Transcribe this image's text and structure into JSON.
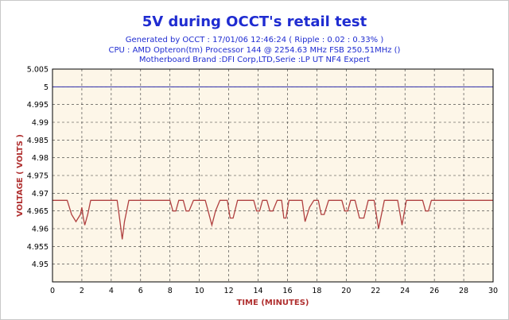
{
  "chart_data": {
    "type": "line",
    "title": "5V during OCCT's retail test",
    "subtitle_lines": [
      "Generated by OCCT : 17/01/06 12:46:24 ( Ripple : 0.02 : 0.33% )",
      "CPU : AMD Opteron(tm) Processor 144     @ 2254.63 MHz FSB 250.51MHz ()",
      "Motherboard Brand :DFI Corp,LTD,Serie :LP UT NF4 Expert"
    ],
    "xlabel": "TIME (MINUTES)",
    "ylabel": "VOLTAGE ( VOLTS )",
    "xlim": [
      0,
      30
    ],
    "ylim": [
      4.945,
      5.005
    ],
    "x_ticks": [
      0,
      2,
      4,
      6,
      8,
      10,
      12,
      14,
      16,
      18,
      20,
      22,
      24,
      26,
      28,
      30
    ],
    "y_ticks": [
      "4.95",
      "4.955",
      "4.96",
      "4.965",
      "4.97",
      "4.975",
      "4.98",
      "4.985",
      "4.99",
      "4.995",
      "5",
      "5.005"
    ],
    "grid": true,
    "colors": {
      "plot_bg": "#fdf6e8",
      "grid": "#333333",
      "ref_line": "#2a2aaa",
      "series": "#b04040",
      "title": "#1f2cd1",
      "axis_title": "#b03030"
    },
    "reference_line": {
      "y": 5.0
    },
    "series": [
      {
        "x": [
          0,
          1.0,
          1.3,
          1.6,
          1.9,
          2.0,
          2.1,
          2.2,
          2.4,
          2.6,
          2.9,
          4.4,
          4.6,
          4.75,
          4.9,
          5.2,
          8.0,
          8.2,
          8.4,
          8.6,
          8.9,
          9.1,
          9.3,
          9.6,
          10.4,
          10.6,
          10.85,
          11.1,
          11.4,
          11.9,
          12.1,
          12.3,
          12.6,
          13.7,
          13.9,
          14.1,
          14.3,
          14.6,
          14.8,
          15.0,
          15.3,
          15.6,
          15.75,
          15.9,
          16.1,
          16.3,
          16.6,
          17.0,
          17.2,
          17.5,
          17.8,
          18.1,
          18.3,
          18.5,
          18.8,
          19.7,
          19.9,
          20.1,
          20.3,
          20.6,
          20.9,
          21.2,
          21.5,
          21.9,
          22.2,
          22.6,
          23.5,
          23.8,
          24.1,
          25.2,
          25.4,
          25.6,
          25.8,
          30
        ],
        "y": [
          4.968,
          4.968,
          4.964,
          4.962,
          4.964,
          4.966,
          4.963,
          4.961,
          4.964,
          4.968,
          4.968,
          4.968,
          4.962,
          4.957,
          4.962,
          4.968,
          4.968,
          4.965,
          4.965,
          4.968,
          4.968,
          4.965,
          4.965,
          4.968,
          4.968,
          4.965,
          4.961,
          4.965,
          4.968,
          4.968,
          4.963,
          4.963,
          4.968,
          4.968,
          4.965,
          4.965,
          4.968,
          4.968,
          4.965,
          4.965,
          4.968,
          4.968,
          4.963,
          4.963,
          4.968,
          4.968,
          4.968,
          4.968,
          4.962,
          4.966,
          4.968,
          4.968,
          4.964,
          4.964,
          4.968,
          4.968,
          4.965,
          4.965,
          4.968,
          4.968,
          4.963,
          4.963,
          4.968,
          4.968,
          4.96,
          4.968,
          4.968,
          4.961,
          4.968,
          4.968,
          4.965,
          4.965,
          4.968,
          4.968
        ]
      }
    ]
  }
}
